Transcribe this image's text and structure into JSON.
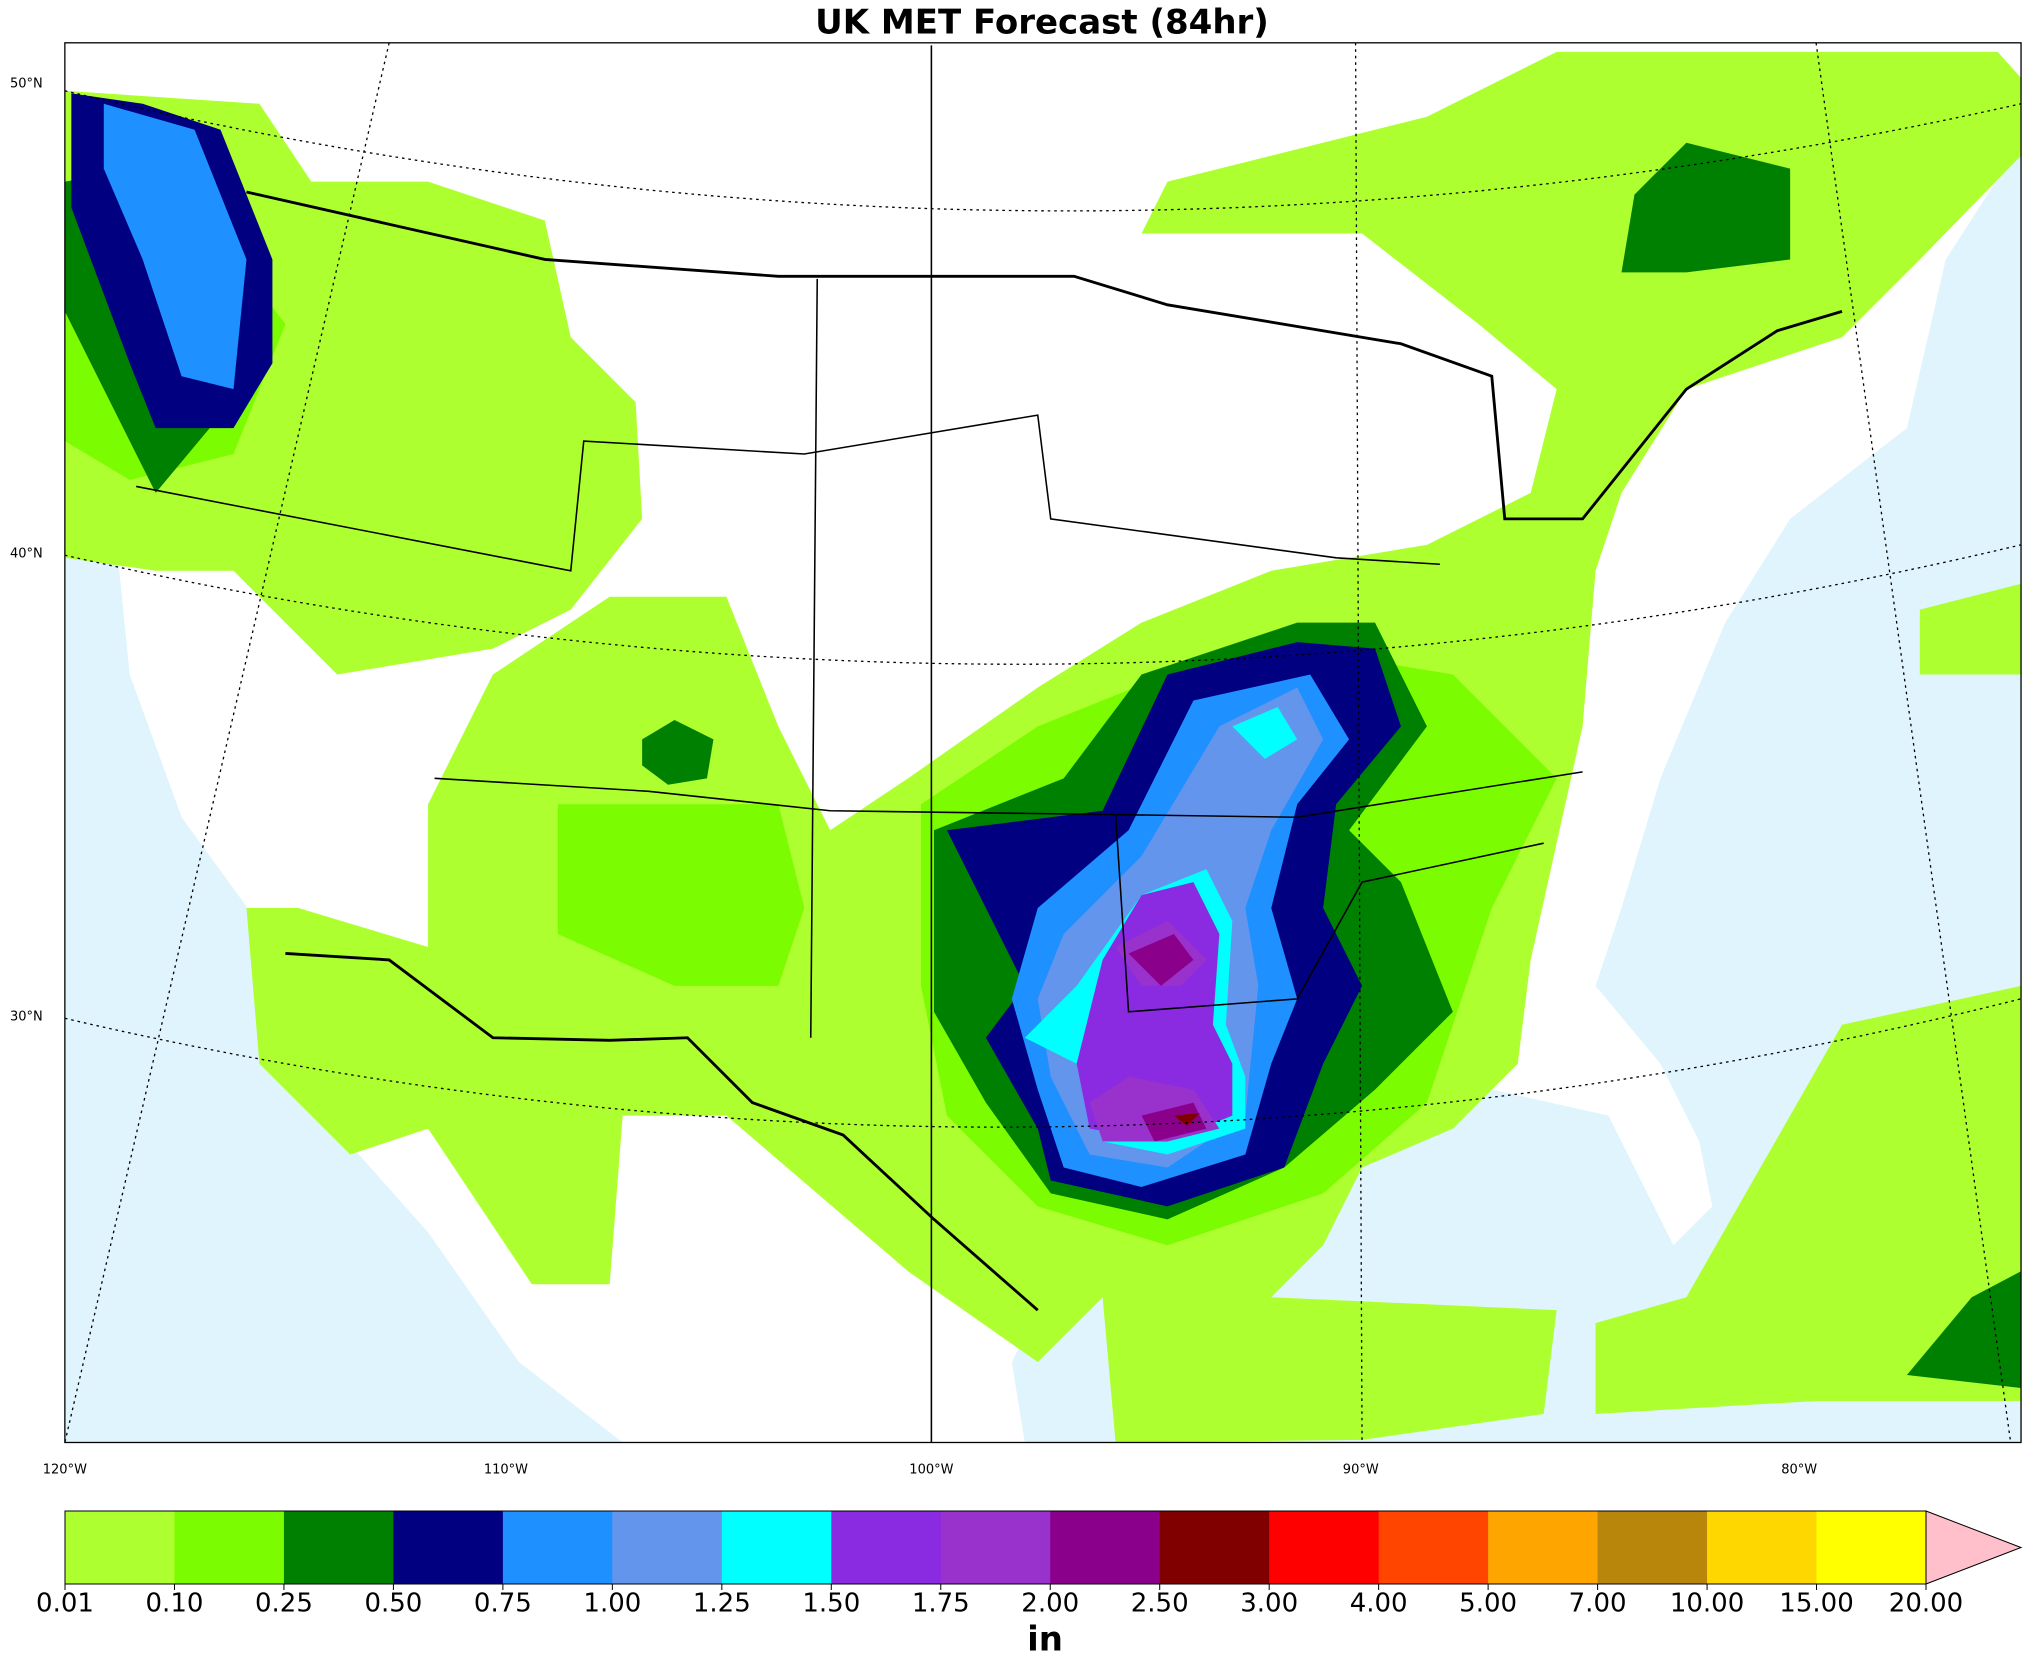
{
  "map": {
    "title": "UK MET Forecast (84hr)",
    "lat_labels": [
      "50°N",
      "40°N",
      "30°N"
    ],
    "lon_labels": [
      "120°W",
      "110°W",
      "100°W",
      "90°W",
      "80°W"
    ]
  },
  "colorbar": {
    "unit_label": "in",
    "ticks": [
      {
        "value": 0.01,
        "label": "0.01"
      },
      {
        "value": 0.1,
        "label": "0.10"
      },
      {
        "value": 0.25,
        "label": "0.25"
      },
      {
        "value": 0.5,
        "label": "0.50"
      },
      {
        "value": 0.75,
        "label": "0.75"
      },
      {
        "value": 1,
        "label": "1.00"
      },
      {
        "value": 1.25,
        "label": "1.25"
      },
      {
        "value": 1.5,
        "label": "1.50"
      },
      {
        "value": 1.75,
        "label": "1.75"
      },
      {
        "value": 2,
        "label": "2.00"
      },
      {
        "value": 2.5,
        "label": "2.50"
      },
      {
        "value": 3,
        "label": "3.00"
      },
      {
        "value": 4,
        "label": "4.00"
      },
      {
        "value": 5,
        "label": "5.00"
      },
      {
        "value": 7,
        "label": "7.00"
      },
      {
        "value": 10,
        "label": "10.00"
      },
      {
        "value": 15,
        "label": "15.00"
      },
      {
        "value": 20,
        "label": "20.00"
      }
    ],
    "colors": [
      "#adff2f",
      "#7cfc00",
      "#008000",
      "#000080",
      "#1e90ff",
      "#6495ed",
      "#00ffff",
      "#8a2be2",
      "#9932cc",
      "#8b008b",
      "#800000",
      "#ff0000",
      "#ff4500",
      "#ffa500",
      "#b8860b",
      "#ffd700",
      "#ffff00"
    ],
    "extend_color": "#ffc0cb"
  }
}
